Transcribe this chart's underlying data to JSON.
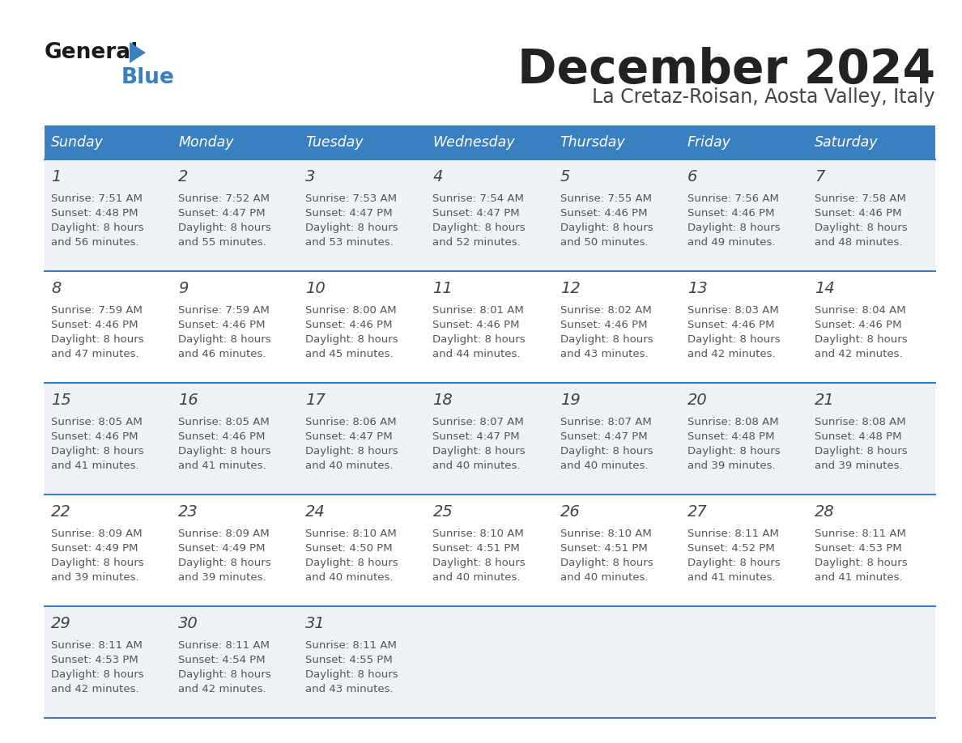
{
  "title": "December 2024",
  "subtitle": "La Cretaz-Roisan, Aosta Valley, Italy",
  "header_bg": "#3a7fbf",
  "header_text": "#ffffff",
  "row_bg_odd": "#eef2f7",
  "row_bg_even": "#ffffff",
  "separator_color": "#3a7fbf",
  "day_number_color": "#444444",
  "text_color": "#555555",
  "title_color": "#222222",
  "subtitle_color": "#444444",
  "days_of_week": [
    "Sunday",
    "Monday",
    "Tuesday",
    "Wednesday",
    "Thursday",
    "Friday",
    "Saturday"
  ],
  "calendar": [
    [
      {
        "day": 1,
        "sunrise": "7:51 AM",
        "sunset": "4:48 PM",
        "daylight": "8 hours and 56 minutes."
      },
      {
        "day": 2,
        "sunrise": "7:52 AM",
        "sunset": "4:47 PM",
        "daylight": "8 hours and 55 minutes."
      },
      {
        "day": 3,
        "sunrise": "7:53 AM",
        "sunset": "4:47 PM",
        "daylight": "8 hours and 53 minutes."
      },
      {
        "day": 4,
        "sunrise": "7:54 AM",
        "sunset": "4:47 PM",
        "daylight": "8 hours and 52 minutes."
      },
      {
        "day": 5,
        "sunrise": "7:55 AM",
        "sunset": "4:46 PM",
        "daylight": "8 hours and 50 minutes."
      },
      {
        "day": 6,
        "sunrise": "7:56 AM",
        "sunset": "4:46 PM",
        "daylight": "8 hours and 49 minutes."
      },
      {
        "day": 7,
        "sunrise": "7:58 AM",
        "sunset": "4:46 PM",
        "daylight": "8 hours and 48 minutes."
      }
    ],
    [
      {
        "day": 8,
        "sunrise": "7:59 AM",
        "sunset": "4:46 PM",
        "daylight": "8 hours and 47 minutes."
      },
      {
        "day": 9,
        "sunrise": "7:59 AM",
        "sunset": "4:46 PM",
        "daylight": "8 hours and 46 minutes."
      },
      {
        "day": 10,
        "sunrise": "8:00 AM",
        "sunset": "4:46 PM",
        "daylight": "8 hours and 45 minutes."
      },
      {
        "day": 11,
        "sunrise": "8:01 AM",
        "sunset": "4:46 PM",
        "daylight": "8 hours and 44 minutes."
      },
      {
        "day": 12,
        "sunrise": "8:02 AM",
        "sunset": "4:46 PM",
        "daylight": "8 hours and 43 minutes."
      },
      {
        "day": 13,
        "sunrise": "8:03 AM",
        "sunset": "4:46 PM",
        "daylight": "8 hours and 42 minutes."
      },
      {
        "day": 14,
        "sunrise": "8:04 AM",
        "sunset": "4:46 PM",
        "daylight": "8 hours and 42 minutes."
      }
    ],
    [
      {
        "day": 15,
        "sunrise": "8:05 AM",
        "sunset": "4:46 PM",
        "daylight": "8 hours and 41 minutes."
      },
      {
        "day": 16,
        "sunrise": "8:05 AM",
        "sunset": "4:46 PM",
        "daylight": "8 hours and 41 minutes."
      },
      {
        "day": 17,
        "sunrise": "8:06 AM",
        "sunset": "4:47 PM",
        "daylight": "8 hours and 40 minutes."
      },
      {
        "day": 18,
        "sunrise": "8:07 AM",
        "sunset": "4:47 PM",
        "daylight": "8 hours and 40 minutes."
      },
      {
        "day": 19,
        "sunrise": "8:07 AM",
        "sunset": "4:47 PM",
        "daylight": "8 hours and 40 minutes."
      },
      {
        "day": 20,
        "sunrise": "8:08 AM",
        "sunset": "4:48 PM",
        "daylight": "8 hours and 39 minutes."
      },
      {
        "day": 21,
        "sunrise": "8:08 AM",
        "sunset": "4:48 PM",
        "daylight": "8 hours and 39 minutes."
      }
    ],
    [
      {
        "day": 22,
        "sunrise": "8:09 AM",
        "sunset": "4:49 PM",
        "daylight": "8 hours and 39 minutes."
      },
      {
        "day": 23,
        "sunrise": "8:09 AM",
        "sunset": "4:49 PM",
        "daylight": "8 hours and 39 minutes."
      },
      {
        "day": 24,
        "sunrise": "8:10 AM",
        "sunset": "4:50 PM",
        "daylight": "8 hours and 40 minutes."
      },
      {
        "day": 25,
        "sunrise": "8:10 AM",
        "sunset": "4:51 PM",
        "daylight": "8 hours and 40 minutes."
      },
      {
        "day": 26,
        "sunrise": "8:10 AM",
        "sunset": "4:51 PM",
        "daylight": "8 hours and 40 minutes."
      },
      {
        "day": 27,
        "sunrise": "8:11 AM",
        "sunset": "4:52 PM",
        "daylight": "8 hours and 41 minutes."
      },
      {
        "day": 28,
        "sunrise": "8:11 AM",
        "sunset": "4:53 PM",
        "daylight": "8 hours and 41 minutes."
      }
    ],
    [
      {
        "day": 29,
        "sunrise": "8:11 AM",
        "sunset": "4:53 PM",
        "daylight": "8 hours and 42 minutes."
      },
      {
        "day": 30,
        "sunrise": "8:11 AM",
        "sunset": "4:54 PM",
        "daylight": "8 hours and 42 minutes."
      },
      {
        "day": 31,
        "sunrise": "8:11 AM",
        "sunset": "4:55 PM",
        "daylight": "8 hours and 43 minutes."
      },
      null,
      null,
      null,
      null
    ]
  ]
}
